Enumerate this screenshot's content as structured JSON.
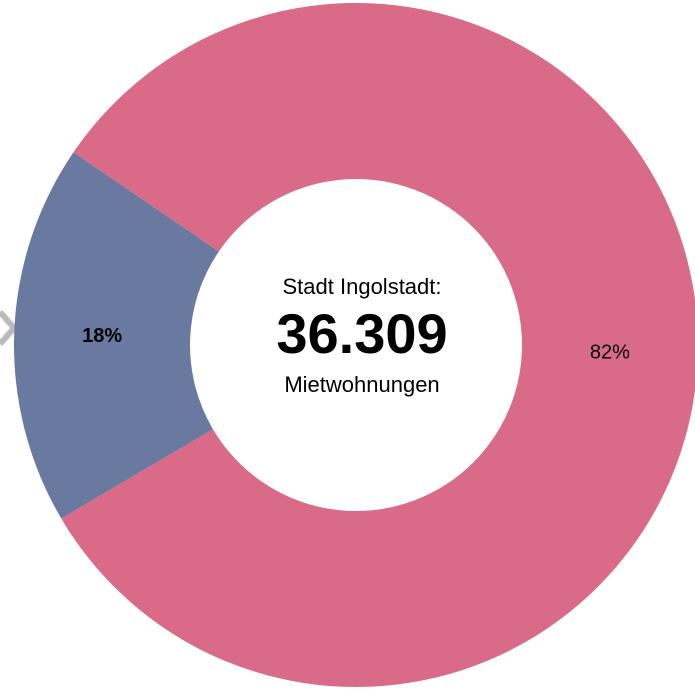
{
  "chart_data": {
    "type": "donut",
    "values": [
      18,
      82
    ],
    "value_labels": [
      "18%",
      "82%"
    ],
    "colors": [
      "#69799f",
      "#d96a88"
    ],
    "center_title": "Stadt Ingolstadt:",
    "center_value": "36.309",
    "center_subtitle": "Mietwohnungen"
  }
}
